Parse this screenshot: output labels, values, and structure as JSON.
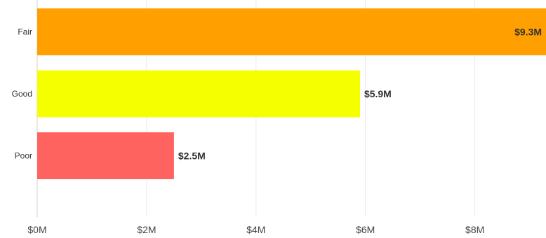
{
  "chart_data": {
    "type": "bar",
    "orientation": "horizontal",
    "categories": [
      "Fair",
      "Good",
      "Poor"
    ],
    "values": [
      9.3,
      5.9,
      2.5
    ],
    "data_labels": [
      "$9.3M",
      "$5.9M",
      "$2.5M"
    ],
    "colors": [
      "#ff9f00",
      "#f6ff00",
      "#ff6360"
    ],
    "xlim": [
      0,
      9.3
    ],
    "x_ticks": [
      0,
      2,
      4,
      6,
      8
    ],
    "x_tick_labels": [
      "$0M",
      "$2M",
      "$4M",
      "$6M",
      "$8M"
    ],
    "grid": true,
    "legend": "none"
  }
}
